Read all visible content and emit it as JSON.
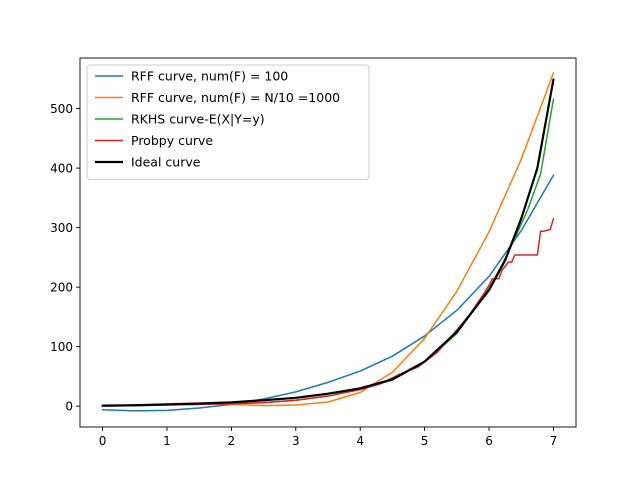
{
  "chart_data": {
    "type": "line",
    "title": "",
    "xlabel": "",
    "ylabel": "",
    "xlim": [
      -0.35,
      7.35
    ],
    "ylim": [
      -35,
      585
    ],
    "xticks": [
      0,
      1,
      2,
      3,
      4,
      5,
      6,
      7
    ],
    "yticks": [
      0,
      100,
      200,
      300,
      400,
      500
    ],
    "grid": false,
    "legend_position": "top-left",
    "series": [
      {
        "name": "RFF curve, num(F) = 100",
        "color": "#1f77b4",
        "x": [
          0,
          0.5,
          1,
          1.5,
          2,
          2.5,
          3,
          3.5,
          4,
          4.5,
          5,
          5.5,
          6,
          6.5,
          7
        ],
        "y": [
          -6,
          -8,
          -7,
          -3,
          3,
          12,
          24,
          40,
          59,
          84,
          118,
          161,
          218,
          295,
          388
        ]
      },
      {
        "name": "RFF curve, num(F) = N/10 =1000",
        "color": "#ff7f0e",
        "x": [
          0,
          0.5,
          1,
          1.5,
          2,
          2.5,
          3,
          3.5,
          4,
          4.5,
          5,
          5.5,
          6,
          6.5,
          7
        ],
        "y": [
          0,
          2,
          4,
          5,
          3,
          1,
          2,
          7,
          23,
          57,
          114,
          193,
          293,
          415,
          560
        ]
      },
      {
        "name": "RKHS curve-E(X|Y=y)",
        "color": "#2ca02c",
        "x": [
          0,
          0.5,
          1,
          1.5,
          2,
          2.5,
          3,
          3.5,
          4,
          4.5,
          5,
          5.5,
          6,
          6.2,
          6.4,
          6.6,
          6.8,
          7
        ],
        "y": [
          0,
          1,
          2,
          3,
          4,
          6,
          10,
          17,
          28,
          44,
          74,
          122,
          198,
          237,
          282,
          330,
          390,
          516
        ]
      },
      {
        "name": "Probpy curve",
        "color": "#d62728",
        "x": [
          0,
          0.5,
          1,
          1.5,
          2,
          2.5,
          3,
          3.5,
          4,
          4.3,
          4.6,
          4.9,
          5.2,
          5.5,
          5.7,
          5.9,
          6.0,
          6.05,
          6.15,
          6.2,
          6.3,
          6.35,
          6.4,
          6.45,
          6.55,
          6.6,
          6.75,
          6.8,
          6.85,
          6.95,
          7.0
        ],
        "y": [
          0,
          1,
          2,
          3,
          4,
          6,
          10,
          17,
          28,
          37,
          53,
          66,
          91,
          128,
          154,
          186,
          203,
          214,
          214,
          228,
          242,
          242,
          254,
          254,
          254,
          254,
          254,
          294,
          294,
          297,
          315
        ]
      },
      {
        "name": "Ideal curve",
        "color": "#000000",
        "x": [
          0,
          0.5,
          1,
          1.5,
          2,
          2.5,
          3,
          3.5,
          4,
          4.5,
          5,
          5.5,
          6,
          6.25,
          6.5,
          6.75,
          7
        ],
        "y": [
          1,
          1.6,
          2.9,
          4.5,
          6.5,
          10,
          14,
          21,
          30,
          45,
          75,
          125,
          195,
          245,
          315,
          400,
          549
        ]
      }
    ]
  }
}
